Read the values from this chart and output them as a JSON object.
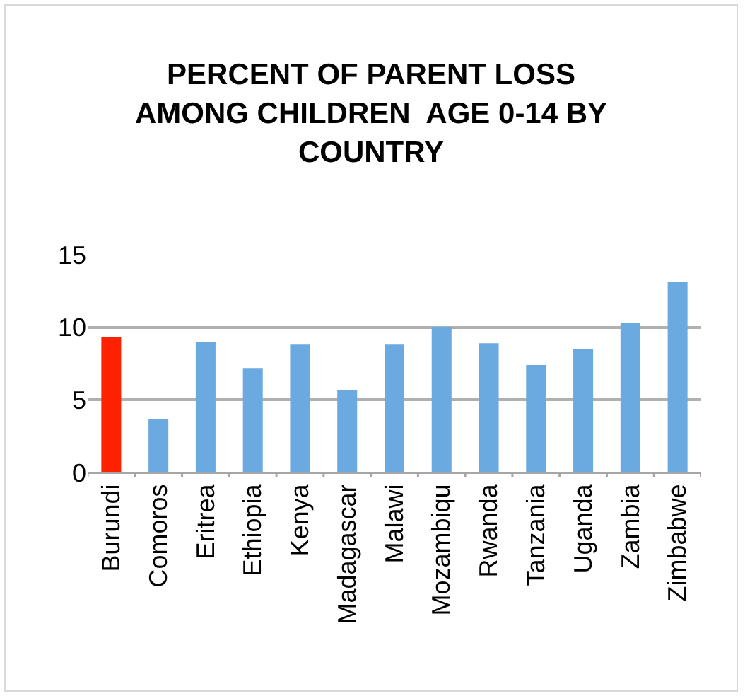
{
  "chart_data": {
    "type": "bar",
    "title": "PERCENT OF PARENT LOSS AMONG CHILDREN  AGE 0-14 BY COUNTRY",
    "categories": [
      "Burundi",
      "Comoros",
      "Eritrea",
      "Ethiopia",
      "Kenya",
      "Madagascar",
      "Malawi",
      "Mozambiqu",
      "Rwanda",
      "Tanzania",
      "Uganda",
      "Zambia",
      "Zimbabwe"
    ],
    "values": [
      9.3,
      3.7,
      9.0,
      7.2,
      8.8,
      5.7,
      8.8,
      10.0,
      8.9,
      7.4,
      8.5,
      10.3,
      13.1
    ],
    "colors": [
      "#ff2200",
      "#6aaae0",
      "#6aaae0",
      "#6aaae0",
      "#6aaae0",
      "#6aaae0",
      "#6aaae0",
      "#6aaae0",
      "#6aaae0",
      "#6aaae0",
      "#6aaae0",
      "#6aaae0",
      "#6aaae0"
    ],
    "ylim": [
      0,
      15
    ],
    "yticks": [
      0,
      5,
      10,
      15
    ],
    "grid": "y"
  }
}
